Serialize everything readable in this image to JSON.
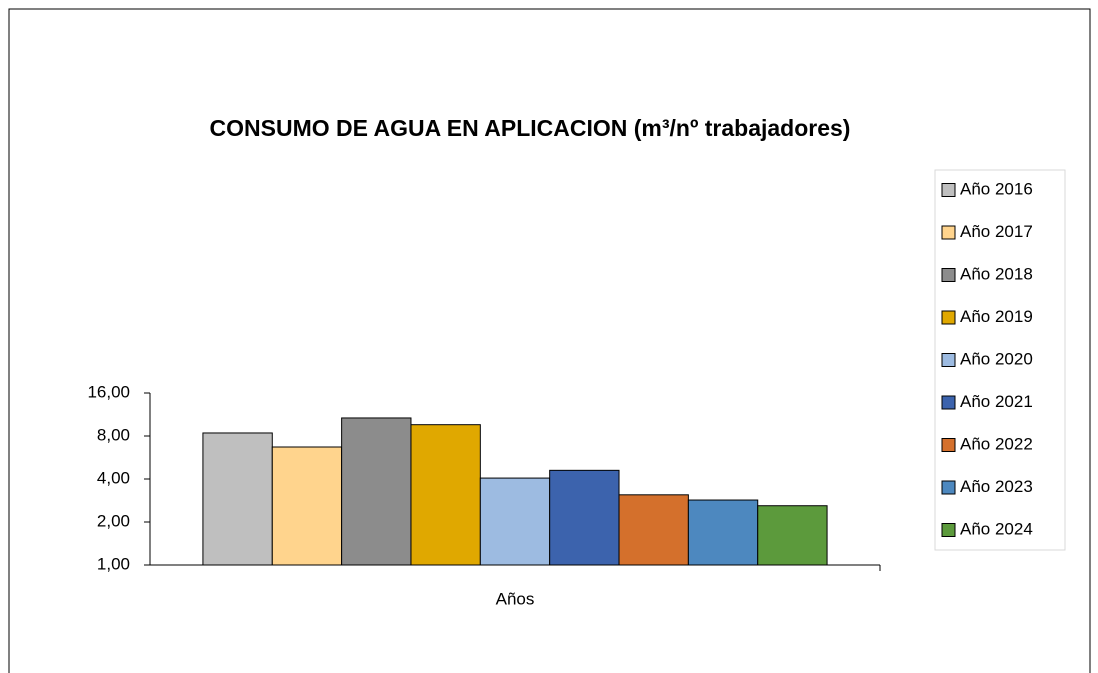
{
  "chart_data": {
    "type": "bar",
    "title": "CONSUMO DE AGUA EN APLICACION (m³/nº trabajadores)",
    "categories": [
      "Años"
    ],
    "log_scale": true,
    "legend": "right",
    "ylim": [
      1,
      16
    ],
    "yticks": [
      {
        "value": 1,
        "label": "1,00"
      },
      {
        "value": 2,
        "label": "2,00"
      },
      {
        "value": 4,
        "label": "4,00"
      },
      {
        "value": 8,
        "label": "8,00"
      },
      {
        "value": 16,
        "label": "16,00"
      }
    ],
    "series": [
      {
        "name": "Año 2016",
        "color": "#bfbfbf",
        "values": [
          8.4
        ]
      },
      {
        "name": "Año 2017",
        "color": "#ffd48d",
        "values": [
          6.7
        ]
      },
      {
        "name": "Año 2018",
        "color": "#8c8c8c",
        "values": [
          10.7
        ]
      },
      {
        "name": "Año 2019",
        "color": "#e0a800",
        "values": [
          9.6
        ]
      },
      {
        "name": "Año 2020",
        "color": "#9dbbe1",
        "values": [
          4.06
        ]
      },
      {
        "name": "Año 2021",
        "color": "#3c63ad",
        "values": [
          4.6
        ]
      },
      {
        "name": "Año 2022",
        "color": "#d4702c",
        "values": [
          3.1
        ]
      },
      {
        "name": "Año 2023",
        "color": "#4d88bf",
        "values": [
          2.85
        ]
      },
      {
        "name": "Año 2024",
        "color": "#5c9a3c",
        "values": [
          2.6
        ]
      }
    ]
  }
}
